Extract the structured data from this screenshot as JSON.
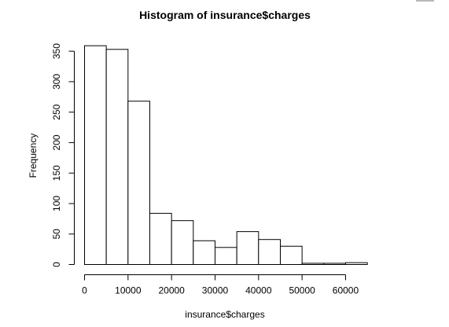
{
  "chart_data": {
    "type": "bar",
    "title": "Histogram of insurance$charges",
    "xlabel": "insurance$charges",
    "ylabel": "Frequency",
    "bin_width": 5000,
    "bins": [
      {
        "x0": 0,
        "x1": 5000,
        "count": 359
      },
      {
        "x0": 5000,
        "x1": 10000,
        "count": 353
      },
      {
        "x0": 10000,
        "x1": 15000,
        "count": 268
      },
      {
        "x0": 15000,
        "x1": 20000,
        "count": 84
      },
      {
        "x0": 20000,
        "x1": 25000,
        "count": 72
      },
      {
        "x0": 25000,
        "x1": 30000,
        "count": 39
      },
      {
        "x0": 30000,
        "x1": 35000,
        "count": 28
      },
      {
        "x0": 35000,
        "x1": 40000,
        "count": 54
      },
      {
        "x0": 40000,
        "x1": 45000,
        "count": 41
      },
      {
        "x0": 45000,
        "x1": 50000,
        "count": 30
      },
      {
        "x0": 50000,
        "x1": 55000,
        "count": 2
      },
      {
        "x0": 55000,
        "x1": 60000,
        "count": 2
      },
      {
        "x0": 60000,
        "x1": 65000,
        "count": 3
      }
    ],
    "x_ticks": [
      0,
      10000,
      20000,
      30000,
      40000,
      50000,
      60000
    ],
    "y_ticks": [
      0,
      50,
      100,
      150,
      200,
      250,
      300,
      350
    ],
    "xlim": [
      0,
      65000
    ],
    "ylim": [
      0,
      360
    ],
    "grid": false,
    "legend": "none"
  },
  "colors": {
    "bar_fill": "#ffffff",
    "bar_stroke": "#000000",
    "text": "#000000"
  }
}
